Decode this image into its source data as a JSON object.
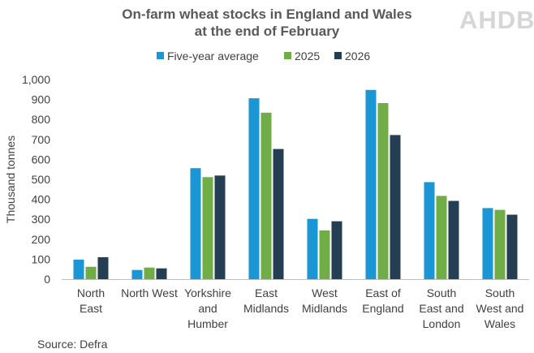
{
  "chart_data": {
    "type": "bar",
    "title_lines": [
      "On-farm wheat stocks in England and Wales",
      "at the end of February"
    ],
    "ylabel": "Thousand tonnes",
    "ylim": [
      0,
      1000
    ],
    "yticks": [
      "0",
      "100",
      "200",
      "300",
      "400",
      "500",
      "600",
      "700",
      "800",
      "900",
      "1,000"
    ],
    "categories": [
      [
        "North",
        "East"
      ],
      [
        "North West"
      ],
      [
        "Yorkshire",
        "and",
        "Humber"
      ],
      [
        "East",
        "Midlands"
      ],
      [
        "West",
        "Midlands"
      ],
      [
        "East of",
        "England"
      ],
      [
        "South",
        "East and",
        "London"
      ],
      [
        "South",
        "West and",
        "Wales"
      ]
    ],
    "series": [
      {
        "name": "Five-year average",
        "color": "#1a96d5",
        "values": [
          98,
          46,
          556,
          906,
          302,
          948,
          486,
          356
        ]
      },
      {
        "name": "2025",
        "color": "#70ad47",
        "values": [
          62,
          58,
          511,
          834,
          244,
          882,
          417,
          347
        ]
      },
      {
        "name": "2026",
        "color": "#243f53",
        "values": [
          110,
          54,
          519,
          652,
          290,
          722,
          392,
          323
        ]
      }
    ],
    "legend_position": "top",
    "grid": false,
    "source": "Source: Defra",
    "logo_text": "AHDB"
  }
}
